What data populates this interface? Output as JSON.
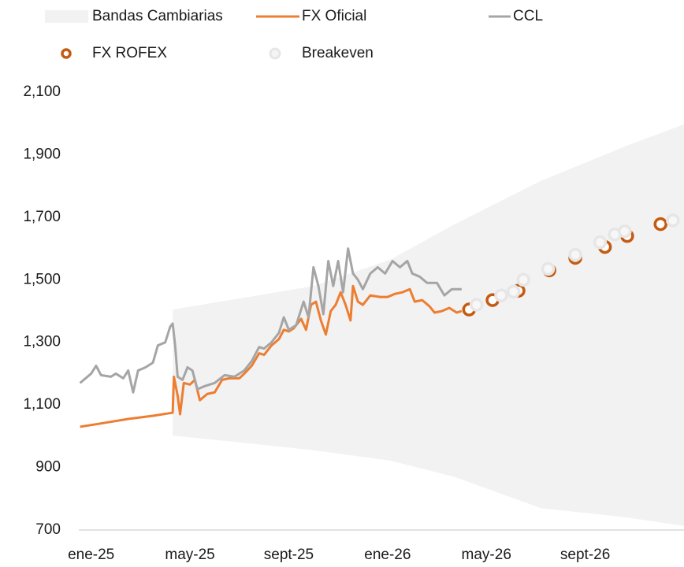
{
  "chart_data": {
    "type": "line",
    "xlim": [
      -0.5,
      24
    ],
    "ylim": [
      700,
      2100
    ],
    "yticks": [
      {
        "value": 700,
        "label": "700"
      },
      {
        "value": 900,
        "label": "900"
      },
      {
        "value": 1100,
        "label": "1,100"
      },
      {
        "value": 1300,
        "label": "1,300"
      },
      {
        "value": 1500,
        "label": "1,500"
      },
      {
        "value": 1700,
        "label": "1,700"
      },
      {
        "value": 1900,
        "label": "1,900"
      },
      {
        "value": 2100,
        "label": "2,100"
      }
    ],
    "xticks": [
      {
        "value": 0,
        "label": "ene-25"
      },
      {
        "value": 4,
        "label": "may-25"
      },
      {
        "value": 8,
        "label": "sept-25"
      },
      {
        "value": 12,
        "label": "ene-26"
      },
      {
        "value": 16,
        "label": "may-26"
      },
      {
        "value": 20,
        "label": "sept-26"
      }
    ],
    "grid": false,
    "series": [
      {
        "name": "Bandas Cambiarias",
        "mark": "band",
        "color": "#f2f2f2",
        "x": [
          3.3,
          6,
          9,
          12.1,
          14.7,
          18.2,
          21.7,
          24
        ],
        "values": [
          1405,
          1440,
          1480,
          1564,
          1677,
          1816,
          1929,
          1997
        ],
        "lower": [
          1002,
          980,
          955,
          922,
          870,
          770,
          740,
          713
        ]
      },
      {
        "name": "FX Oficial",
        "mark": "line",
        "color": "#ed7d31",
        "x": [
          -0.45,
          0.5,
          1.5,
          2.5,
          3.3,
          3.35,
          3.5,
          3.6,
          3.75,
          4.0,
          4.2,
          4.4,
          4.7,
          5.0,
          5.3,
          5.6,
          6.0,
          6.2,
          6.5,
          6.8,
          7.0,
          7.3,
          7.6,
          7.8,
          8.0,
          8.2,
          8.5,
          8.7,
          8.9,
          9.1,
          9.3,
          9.5,
          9.7,
          9.9,
          10.1,
          10.3,
          10.5,
          10.6,
          10.8,
          11.0,
          11.3,
          11.7,
          12.0,
          12.3,
          12.6,
          12.9,
          13.1,
          13.4,
          13.7,
          13.9,
          14.2,
          14.5,
          14.8,
          15.0
        ],
        "values": [
          1030,
          1042,
          1055,
          1065,
          1075,
          1190,
          1130,
          1070,
          1170,
          1165,
          1180,
          1115,
          1135,
          1140,
          1180,
          1185,
          1185,
          1200,
          1225,
          1265,
          1260,
          1290,
          1310,
          1340,
          1335,
          1345,
          1375,
          1340,
          1420,
          1430,
          1370,
          1325,
          1400,
          1420,
          1460,
          1420,
          1370,
          1480,
          1430,
          1420,
          1450,
          1445,
          1445,
          1455,
          1460,
          1470,
          1430,
          1435,
          1415,
          1395,
          1400,
          1410,
          1395,
          1400
        ]
      },
      {
        "name": "CCL",
        "mark": "line",
        "color": "#a5a5a5",
        "x": [
          -0.45,
          0,
          0.2,
          0.4,
          0.8,
          1.0,
          1.3,
          1.5,
          1.7,
          1.9,
          2.2,
          2.5,
          2.7,
          3.0,
          3.2,
          3.3,
          3.4,
          3.5,
          3.7,
          3.9,
          4.1,
          4.3,
          4.6,
          5.0,
          5.4,
          5.8,
          6.2,
          6.5,
          6.8,
          7.0,
          7.3,
          7.6,
          7.8,
          8.0,
          8.3,
          8.6,
          8.8,
          9.0,
          9.2,
          9.4,
          9.6,
          9.8,
          10.0,
          10.2,
          10.4,
          10.6,
          10.8,
          11.0,
          11.3,
          11.6,
          11.9,
          12.2,
          12.5,
          12.8,
          13.0,
          13.3,
          13.6,
          14.0,
          14.3,
          14.6,
          15.0
        ],
        "values": [
          1170,
          1200,
          1225,
          1195,
          1190,
          1200,
          1185,
          1210,
          1140,
          1210,
          1220,
          1235,
          1290,
          1300,
          1350,
          1360,
          1290,
          1190,
          1180,
          1220,
          1210,
          1150,
          1160,
          1170,
          1195,
          1190,
          1210,
          1240,
          1285,
          1280,
          1300,
          1330,
          1380,
          1340,
          1355,
          1430,
          1380,
          1540,
          1480,
          1390,
          1560,
          1480,
          1560,
          1460,
          1600,
          1520,
          1500,
          1470,
          1520,
          1540,
          1520,
          1560,
          1540,
          1560,
          1520,
          1510,
          1490,
          1490,
          1450,
          1470,
          1470
        ]
      },
      {
        "name": "FX ROFEX",
        "mark": "marker",
        "color": "#c55a11",
        "x": [
          15.3,
          16.25,
          17.3,
          18.55,
          19.6,
          20.8,
          21.7,
          23.05
        ],
        "values": [
          1405,
          1435,
          1465,
          1530,
          1570,
          1605,
          1640,
          1678
        ]
      },
      {
        "name": "Breakeven",
        "mark": "marker",
        "color": "#e6e6e6",
        "x": [
          15.6,
          16.6,
          17.1,
          17.5,
          18.5,
          19.6,
          20.6,
          21.2,
          21.6,
          23.55
        ],
        "values": [
          1420,
          1450,
          1462,
          1500,
          1535,
          1580,
          1620,
          1645,
          1655,
          1690
        ]
      }
    ]
  }
}
